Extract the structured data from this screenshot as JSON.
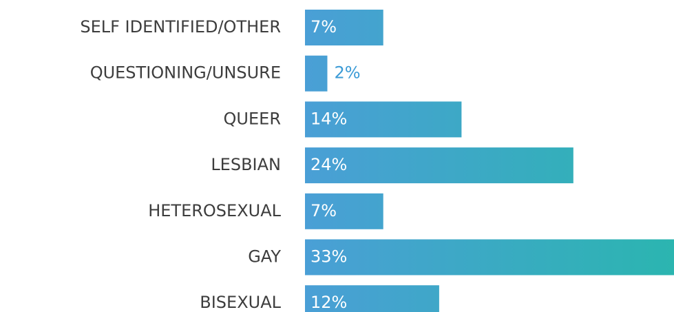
{
  "chart_data": {
    "type": "bar",
    "orientation": "horizontal",
    "categories": [
      "SELF IDENTIFIED/OTHER",
      "QUESTIONING/UNSURE",
      "QUEER",
      "LESBIAN",
      "HETEROSEXUAL",
      "GAY",
      "BISEXUAL"
    ],
    "values": [
      7,
      2,
      14,
      24,
      7,
      33,
      12
    ],
    "value_labels": [
      "7%",
      "2%",
      "14%",
      "24%",
      "7%",
      "33%",
      "12%"
    ],
    "color": [
      "#4a9fd6",
      "#2bb5b0"
    ]
  }
}
